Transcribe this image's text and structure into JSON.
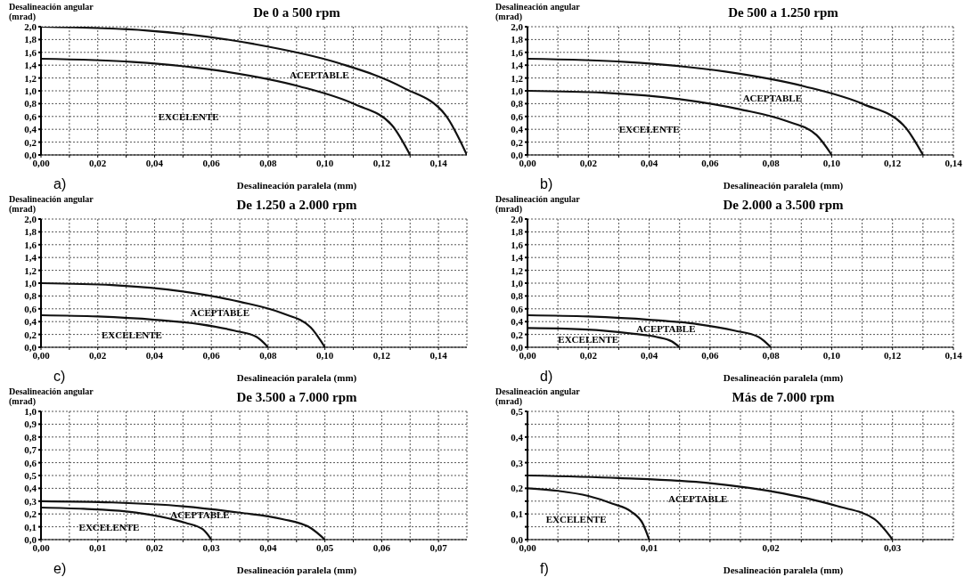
{
  "chart_data": [
    {
      "type": "line",
      "title": "De 0 a 500 rpm",
      "xlabel": "Desalineación paralela (mm)",
      "ylabel": "Desalineación angular (mrad)",
      "grid": true,
      "annotations": [
        "ACEPTABLE",
        "EXCELENTE",
        "a)"
      ],
      "series": [
        {
          "color": "#111111",
          "x": [
            0,
            0.0375,
            0.075,
            0.105,
            0.1275,
            0.1425,
            0.15
          ],
          "values": [
            2.0,
            1.94,
            1.73,
            1.43,
            1.05,
            0.62,
            0
          ]
        },
        {
          "color": "#111111",
          "x": [
            0,
            0.0325,
            0.065,
            0.091,
            0.1105,
            0.1235,
            0.13
          ],
          "values": [
            1.5,
            1.45,
            1.3,
            1.07,
            0.79,
            0.47,
            0
          ]
        }
      ],
      "xlim": [
        0,
        0.15
      ],
      "xticks": [
        {
          "value": 0,
          "label": "0,00"
        },
        {
          "value": 0.01,
          "label": null
        },
        {
          "value": 0.02,
          "label": "0,02"
        },
        {
          "value": 0.03,
          "label": null
        },
        {
          "value": 0.04,
          "label": "0,04"
        },
        {
          "value": 0.05,
          "label": null
        },
        {
          "value": 0.06,
          "label": "0,06"
        },
        {
          "value": 0.07,
          "label": null
        },
        {
          "value": 0.08,
          "label": "0,08"
        },
        {
          "value": 0.09,
          "label": null
        },
        {
          "value": 0.1,
          "label": "0,10"
        },
        {
          "value": 0.11,
          "label": null
        },
        {
          "value": 0.12,
          "label": "0,12"
        },
        {
          "value": 0.13,
          "label": null
        },
        {
          "value": 0.14,
          "label": "0,14"
        }
      ],
      "ylim": [
        0,
        2.0
      ],
      "yticks": [
        {
          "value": 0,
          "label": "0,0"
        },
        {
          "value": 0.2,
          "label": "0,2"
        },
        {
          "value": 0.4,
          "label": "0,4"
        },
        {
          "value": 0.6,
          "label": "0,6"
        },
        {
          "value": 0.8,
          "label": "0,8"
        },
        {
          "value": 1.0,
          "label": "1,0"
        },
        {
          "value": 1.2,
          "label": "1,2"
        },
        {
          "value": 1.4,
          "label": "1,4"
        },
        {
          "value": 1.6,
          "label": "1,6"
        },
        {
          "value": 1.8,
          "label": "1,8"
        },
        {
          "value": 2.0,
          "label": "2,0"
        }
      ]
    },
    {
      "type": "line",
      "title": "De 500 a 1.250 rpm",
      "xlabel": "Desalineación paralela (mm)",
      "ylabel": "Desalineación angular (mrad)",
      "grid": true,
      "annotations": [
        "ACEPTABLE",
        "EXCELENTE",
        "b)"
      ],
      "series": [
        {
          "color": "#111111",
          "x": [
            0,
            0.0325,
            0.065,
            0.091,
            0.1105,
            0.1235,
            0.13
          ],
          "values": [
            1.5,
            1.45,
            1.3,
            1.07,
            0.79,
            0.47,
            0
          ]
        },
        {
          "color": "#111111",
          "x": [
            0,
            0.025,
            0.05,
            0.07,
            0.085,
            0.095,
            0.1
          ],
          "values": [
            1.0,
            0.97,
            0.87,
            0.71,
            0.53,
            0.31,
            0
          ]
        }
      ],
      "xlim": [
        0,
        0.14
      ],
      "xticks": [
        {
          "value": 0,
          "label": "0,00"
        },
        {
          "value": 0.01,
          "label": null
        },
        {
          "value": 0.02,
          "label": "0,02"
        },
        {
          "value": 0.03,
          "label": null
        },
        {
          "value": 0.04,
          "label": "0,04"
        },
        {
          "value": 0.05,
          "label": null
        },
        {
          "value": 0.06,
          "label": "0,06"
        },
        {
          "value": 0.07,
          "label": null
        },
        {
          "value": 0.08,
          "label": "0,08"
        },
        {
          "value": 0.09,
          "label": null
        },
        {
          "value": 0.1,
          "label": "0,10"
        },
        {
          "value": 0.11,
          "label": null
        },
        {
          "value": 0.12,
          "label": "0,12"
        },
        {
          "value": 0.13,
          "label": null
        },
        {
          "value": 0.14,
          "label": "0,14"
        }
      ],
      "ylim": [
        0,
        2.0
      ],
      "yticks": [
        {
          "value": 0,
          "label": "0,0"
        },
        {
          "value": 0.2,
          "label": "0,2"
        },
        {
          "value": 0.4,
          "label": "0,4"
        },
        {
          "value": 0.6,
          "label": "0,6"
        },
        {
          "value": 0.8,
          "label": "0,8"
        },
        {
          "value": 1.0,
          "label": "1,0"
        },
        {
          "value": 1.2,
          "label": "1,2"
        },
        {
          "value": 1.4,
          "label": "1,4"
        },
        {
          "value": 1.6,
          "label": "1,6"
        },
        {
          "value": 1.8,
          "label": "1,8"
        },
        {
          "value": 2.0,
          "label": "2,0"
        }
      ]
    },
    {
      "type": "line",
      "title": "De 1.250 a 2.000 rpm",
      "xlabel": "Desalineación paralela (mm)",
      "ylabel": "Desalineación angular (mrad)",
      "grid": true,
      "annotations": [
        "ACEPTABLE",
        "EXCELENTE",
        "c)"
      ],
      "series": [
        {
          "color": "#111111",
          "x": [
            0,
            0.025,
            0.05,
            0.07,
            0.085,
            0.095,
            0.1
          ],
          "values": [
            1.0,
            0.97,
            0.87,
            0.71,
            0.53,
            0.31,
            0
          ]
        },
        {
          "color": "#111111",
          "x": [
            0,
            0.02,
            0.04,
            0.056,
            0.068,
            0.076,
            0.08
          ],
          "values": [
            0.5,
            0.48,
            0.43,
            0.36,
            0.26,
            0.16,
            0
          ]
        }
      ],
      "xlim": [
        0,
        0.15
      ],
      "xticks": [
        {
          "value": 0,
          "label": "0,00"
        },
        {
          "value": 0.01,
          "label": null
        },
        {
          "value": 0.02,
          "label": "0,02"
        },
        {
          "value": 0.03,
          "label": null
        },
        {
          "value": 0.04,
          "label": "0,04"
        },
        {
          "value": 0.05,
          "label": null
        },
        {
          "value": 0.06,
          "label": "0,06"
        },
        {
          "value": 0.07,
          "label": null
        },
        {
          "value": 0.08,
          "label": "0,08"
        },
        {
          "value": 0.09,
          "label": null
        },
        {
          "value": 0.1,
          "label": "0,10"
        },
        {
          "value": 0.11,
          "label": null
        },
        {
          "value": 0.12,
          "label": "0,12"
        },
        {
          "value": 0.13,
          "label": null
        },
        {
          "value": 0.14,
          "label": "0,14"
        }
      ],
      "ylim": [
        0,
        2.0
      ],
      "yticks": [
        {
          "value": 0,
          "label": "0,0"
        },
        {
          "value": 0.2,
          "label": "0,2"
        },
        {
          "value": 0.4,
          "label": "0,4"
        },
        {
          "value": 0.6,
          "label": "0,6"
        },
        {
          "value": 0.8,
          "label": "0,8"
        },
        {
          "value": 1.0,
          "label": "1,0"
        },
        {
          "value": 1.2,
          "label": "1,2"
        },
        {
          "value": 1.4,
          "label": "1,4"
        },
        {
          "value": 1.6,
          "label": "1,6"
        },
        {
          "value": 1.8,
          "label": "1,8"
        },
        {
          "value": 2.0,
          "label": "2,0"
        }
      ]
    },
    {
      "type": "line",
      "title": "De 2.000 a 3.500 rpm",
      "xlabel": "Desalineación paralela (mm)",
      "ylabel": "Desalineación angular (mrad)",
      "grid": true,
      "annotations": [
        "ACEPTABLE",
        "EXCELENTE",
        "d)"
      ],
      "series": [
        {
          "color": "#111111",
          "x": [
            0,
            0.02,
            0.04,
            0.056,
            0.068,
            0.076,
            0.08
          ],
          "values": [
            0.5,
            0.48,
            0.43,
            0.36,
            0.26,
            0.16,
            0
          ]
        },
        {
          "color": "#111111",
          "x": [
            0,
            0.0125,
            0.025,
            0.035,
            0.0425,
            0.0475,
            0.05
          ],
          "values": [
            0.3,
            0.29,
            0.26,
            0.21,
            0.16,
            0.09,
            0
          ]
        }
      ],
      "xlim": [
        0,
        0.14
      ],
      "xticks": [
        {
          "value": 0,
          "label": "0,00"
        },
        {
          "value": 0.01,
          "label": null
        },
        {
          "value": 0.02,
          "label": "0,02"
        },
        {
          "value": 0.03,
          "label": null
        },
        {
          "value": 0.04,
          "label": "0,04"
        },
        {
          "value": 0.05,
          "label": null
        },
        {
          "value": 0.06,
          "label": "0,06"
        },
        {
          "value": 0.07,
          "label": null
        },
        {
          "value": 0.08,
          "label": "0,08"
        },
        {
          "value": 0.09,
          "label": null
        },
        {
          "value": 0.1,
          "label": "0,10"
        },
        {
          "value": 0.11,
          "label": null
        },
        {
          "value": 0.12,
          "label": "0,12"
        },
        {
          "value": 0.13,
          "label": null
        },
        {
          "value": 0.14,
          "label": "0,14"
        }
      ],
      "ylim": [
        0,
        2.0
      ],
      "yticks": [
        {
          "value": 0,
          "label": "0,0"
        },
        {
          "value": 0.2,
          "label": "0,2"
        },
        {
          "value": 0.4,
          "label": "0,4"
        },
        {
          "value": 0.6,
          "label": "0,6"
        },
        {
          "value": 0.8,
          "label": "0,8"
        },
        {
          "value": 1.0,
          "label": "1,0"
        },
        {
          "value": 1.2,
          "label": "1,2"
        },
        {
          "value": 1.4,
          "label": "1,4"
        },
        {
          "value": 1.6,
          "label": "1,6"
        },
        {
          "value": 1.8,
          "label": "1,8"
        },
        {
          "value": 2.0,
          "label": "2,0"
        }
      ]
    },
    {
      "type": "line",
      "title": "De 3.500 a 7.000 rpm",
      "xlabel": "Desalineación paralela (mm)",
      "ylabel": "Desalineación angular (mrad)",
      "grid": true,
      "annotations": [
        "ACEPTABLE",
        "EXCELENTE",
        "e)"
      ],
      "series": [
        {
          "color": "#111111",
          "x": [
            0,
            0.0125,
            0.025,
            0.035,
            0.0425,
            0.0475,
            0.05
          ],
          "values": [
            0.3,
            0.29,
            0.26,
            0.21,
            0.16,
            0.09,
            0
          ]
        },
        {
          "color": "#111111",
          "x": [
            0,
            0.0075,
            0.015,
            0.021,
            0.0255,
            0.0285,
            0.03
          ],
          "values": [
            0.25,
            0.24,
            0.22,
            0.18,
            0.13,
            0.08,
            0
          ]
        }
      ],
      "xlim": [
        0,
        0.075
      ],
      "xticks": [
        {
          "value": 0,
          "label": "0,00"
        },
        {
          "value": 0.005,
          "label": null
        },
        {
          "value": 0.01,
          "label": "0,01"
        },
        {
          "value": 0.015,
          "label": null
        },
        {
          "value": 0.02,
          "label": "0,02"
        },
        {
          "value": 0.025,
          "label": null
        },
        {
          "value": 0.03,
          "label": "0,03"
        },
        {
          "value": 0.035,
          "label": null
        },
        {
          "value": 0.04,
          "label": "0,04"
        },
        {
          "value": 0.045,
          "label": null
        },
        {
          "value": 0.05,
          "label": "0,05"
        },
        {
          "value": 0.055,
          "label": null
        },
        {
          "value": 0.06,
          "label": "0,06"
        },
        {
          "value": 0.065,
          "label": null
        },
        {
          "value": 0.07,
          "label": "0,07"
        }
      ],
      "ylim": [
        0,
        1.0
      ],
      "yticks": [
        {
          "value": 0,
          "label": "0,0"
        },
        {
          "value": 0.1,
          "label": "0,1"
        },
        {
          "value": 0.2,
          "label": "0,2"
        },
        {
          "value": 0.3,
          "label": "0,3"
        },
        {
          "value": 0.4,
          "label": "0,4"
        },
        {
          "value": 0.5,
          "label": "0,5"
        },
        {
          "value": 0.6,
          "label": "0,6"
        },
        {
          "value": 0.7,
          "label": "0,7"
        },
        {
          "value": 0.8,
          "label": "0,8"
        },
        {
          "value": 0.9,
          "label": "0,9"
        },
        {
          "value": 1.0,
          "label": "1,0"
        }
      ]
    },
    {
      "type": "line",
      "title": "Más de 7.000 rpm",
      "xlabel": "Desalineación paralela (mm)",
      "ylabel": "Desalineación angular (mrad)",
      "grid": true,
      "annotations": [
        "ACEPTABLE",
        "EXCELENTE",
        "f)"
      ],
      "series": [
        {
          "color": "#111111",
          "x": [
            0,
            0.0075,
            0.015,
            0.021,
            0.0255,
            0.0285,
            0.03
          ],
          "values": [
            0.25,
            0.24,
            0.22,
            0.18,
            0.13,
            0.08,
            0
          ]
        },
        {
          "color": "#111111",
          "x": [
            0,
            0.0025,
            0.005,
            0.007,
            0.0085,
            0.0095,
            0.01
          ],
          "values": [
            0.2,
            0.19,
            0.17,
            0.14,
            0.11,
            0.06,
            0
          ]
        }
      ],
      "xlim": [
        0,
        0.035
      ],
      "xticks": [
        {
          "value": 0,
          "label": "0,00"
        },
        {
          "value": 0.0025,
          "label": null
        },
        {
          "value": 0.005,
          "label": null
        },
        {
          "value": 0.0075,
          "label": null
        },
        {
          "value": 0.01,
          "label": "0,01"
        },
        {
          "value": 0.0125,
          "label": null
        },
        {
          "value": 0.015,
          "label": null
        },
        {
          "value": 0.0175,
          "label": null
        },
        {
          "value": 0.02,
          "label": "0,02"
        },
        {
          "value": 0.0225,
          "label": null
        },
        {
          "value": 0.025,
          "label": null
        },
        {
          "value": 0.0275,
          "label": null
        },
        {
          "value": 0.03,
          "label": "0,03"
        },
        {
          "value": 0.0325,
          "label": null
        }
      ],
      "ylim": [
        0,
        0.5
      ],
      "yticks": [
        {
          "value": 0,
          "label": "0,0"
        },
        {
          "value": 0.05,
          "label": null
        },
        {
          "value": 0.1,
          "label": "0,1"
        },
        {
          "value": 0.15,
          "label": null
        },
        {
          "value": 0.2,
          "label": "0,2"
        },
        {
          "value": 0.25,
          "label": null
        },
        {
          "value": 0.3,
          "label": "0,3"
        },
        {
          "value": 0.35,
          "label": null
        },
        {
          "value": 0.4,
          "label": "0,4"
        },
        {
          "value": 0.45,
          "label": null
        },
        {
          "value": 0.5,
          "label": "0,5"
        }
      ]
    }
  ]
}
